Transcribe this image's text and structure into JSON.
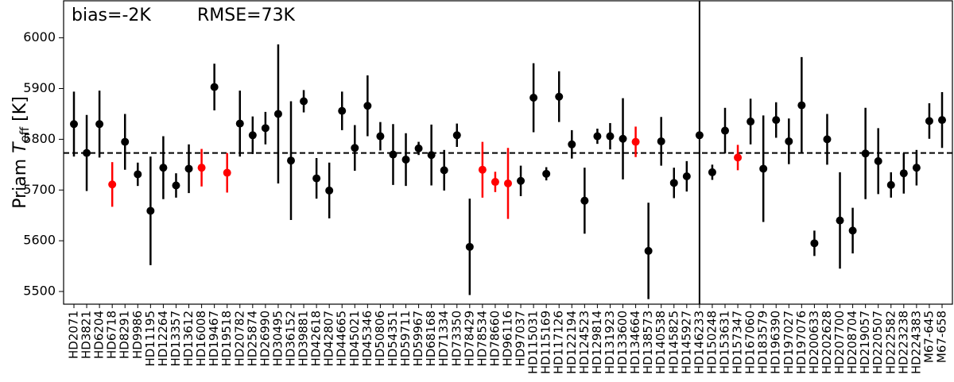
{
  "chart_data": {
    "type": "errorbar",
    "annotations": [
      "bias=-2K",
      "RMSE=73K"
    ],
    "ylabel": {
      "prefix": "Priam ",
      "symbol": "T",
      "subscript": "eff",
      "suffix": " [K]"
    },
    "categories": [
      "HD2071",
      "HD3821",
      "HD6204",
      "HD6718",
      "HD8291",
      "HD9986",
      "HD11195",
      "HD12264",
      "HD13357",
      "HD13612",
      "HD16008",
      "HD19467",
      "HD19518",
      "HD20782",
      "HD25874",
      "HD26990",
      "HD30495",
      "HD36152",
      "HD39881",
      "HD42618",
      "HD42807",
      "HD44665",
      "HD45021",
      "HD45346",
      "HD50806",
      "HD54351",
      "HD59711",
      "HD59967",
      "HD68168",
      "HD71334",
      "HD73350",
      "HD78429",
      "HD78534",
      "HD78660",
      "HD96116",
      "HD97037",
      "HD115031",
      "HD115169",
      "HD117126",
      "HD122194",
      "HD124523",
      "HD129814",
      "HD131923",
      "HD133600",
      "HD134664",
      "HD138573",
      "HD140538",
      "HD145825",
      "HD145927",
      "HD146233",
      "HD150248",
      "HD153631",
      "HD157347",
      "HD167060",
      "HD183579",
      "HD196390",
      "HD197027",
      "HD197076",
      "HD200633",
      "HD202628",
      "HD207700",
      "HD208704",
      "HD219057",
      "HD220507",
      "HD222582",
      "HD223238",
      "HD224383",
      "M67-645",
      "M67-658"
    ],
    "values": [
      5830,
      5773,
      5830,
      5711,
      5795,
      5731,
      5659,
      5744,
      5709,
      5742,
      5744,
      5903,
      5734,
      5831,
      5808,
      5822,
      5850,
      5758,
      5875,
      5723,
      5699,
      5856,
      5783,
      5866,
      5806,
      5770,
      5760,
      5782,
      5769,
      5739,
      5808,
      5588,
      5740,
      5716,
      5713,
      5718,
      5882,
      5732,
      5884,
      5790,
      5679,
      5806,
      5806,
      5801,
      5795,
      5580,
      5796,
      5714,
      5727,
      5808,
      5735,
      5817,
      5764,
      5835,
      5742,
      5838,
      5796,
      5867,
      5595,
      5800,
      5640,
      5620,
      5772,
      5757,
      5710,
      5733,
      5744,
      5836,
      5838
    ],
    "errors": [
      64,
      75,
      66,
      44,
      55,
      23,
      107,
      62,
      24,
      48,
      37,
      46,
      39,
      65,
      37,
      32,
      137,
      117,
      22,
      40,
      55,
      38,
      45,
      60,
      28,
      60,
      52,
      13,
      60,
      40,
      23,
      95,
      55,
      20,
      70,
      30,
      68,
      13,
      50,
      28,
      65,
      15,
      26,
      80,
      30,
      95,
      48,
      30,
      30,
      3,
      15,
      45,
      25,
      45,
      105,
      35,
      45,
      95,
      25,
      50,
      95,
      45,
      90,
      65,
      25,
      40,
      35,
      35,
      55
    ],
    "colors": [
      "black",
      "black",
      "black",
      "red",
      "black",
      "black",
      "black",
      "black",
      "black",
      "black",
      "red",
      "black",
      "red",
      "black",
      "black",
      "black",
      "black",
      "black",
      "black",
      "black",
      "black",
      "black",
      "black",
      "black",
      "black",
      "black",
      "black",
      "black",
      "black",
      "black",
      "black",
      "black",
      "red",
      "red",
      "red",
      "black",
      "black",
      "black",
      "black",
      "black",
      "black",
      "black",
      "black",
      "black",
      "red",
      "black",
      "black",
      "black",
      "black",
      "black",
      "black",
      "black",
      "red",
      "black",
      "black",
      "black",
      "black",
      "black",
      "black",
      "black",
      "black",
      "black",
      "black",
      "black",
      "black",
      "black",
      "black",
      "black",
      "black"
    ],
    "reference_line": 5773,
    "ylim": [
      5475,
      6073
    ],
    "yticks": [
      5500,
      5600,
      5700,
      5800,
      5900,
      6000
    ]
  }
}
